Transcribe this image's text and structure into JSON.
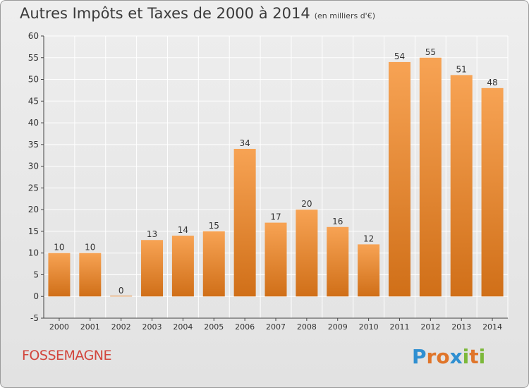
{
  "title": "Autres Impôts et Taxes de 2000 à 2014",
  "subtitle": "(en milliers d'€)",
  "commune": "FOSSEMAGNE",
  "logo": {
    "text": "Proxiti",
    "letter_colors": [
      "#2f8fd1",
      "#e0752a",
      "#e0752a",
      "#2f8fd1",
      "#7cb83a",
      "#e0752a",
      "#7cb83a"
    ]
  },
  "colors": {
    "bar_top": "#f7a354",
    "bar_bottom": "#d06f18",
    "axis": "#444444",
    "grid": "#ffffff"
  },
  "chart_data": {
    "type": "bar",
    "title": "Autres Impôts et Taxes de 2000 à 2014",
    "xlabel": "",
    "ylabel": "",
    "categories": [
      "2000",
      "2001",
      "2002",
      "2003",
      "2004",
      "2005",
      "2006",
      "2007",
      "2008",
      "2009",
      "2010",
      "2011",
      "2012",
      "2013",
      "2014"
    ],
    "values": [
      10,
      10,
      0,
      13,
      14,
      15,
      34,
      17,
      20,
      16,
      12,
      54,
      55,
      51,
      48
    ],
    "ylim": [
      -5,
      60
    ],
    "yticks": [
      -5,
      0,
      5,
      10,
      15,
      20,
      25,
      30,
      35,
      40,
      45,
      50,
      55,
      60
    ],
    "grid": true,
    "data_labels": true
  }
}
